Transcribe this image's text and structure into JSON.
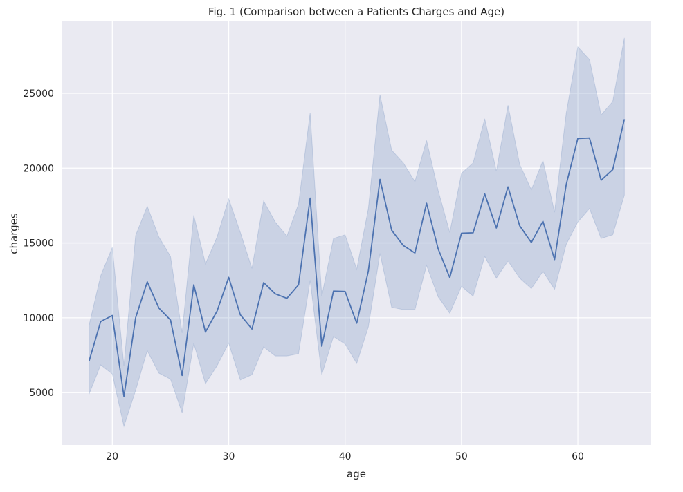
{
  "chart_data": {
    "type": "line",
    "title": "Fig. 1 (Comparison between a Patients Charges and Age)",
    "xlabel": "age",
    "ylabel": "charges",
    "xlim": [
      15.7,
      66.3
    ],
    "ylim": [
      1500,
      29800
    ],
    "x_ticks": [
      20,
      30,
      40,
      50,
      60
    ],
    "y_ticks": [
      5000,
      10000,
      15000,
      20000,
      25000
    ],
    "grid": true,
    "legend": "none",
    "colors": {
      "line": "#4c72b0",
      "band": "#4c72b0",
      "background": "#eaeaf2",
      "grid": "#ffffff"
    },
    "x": [
      18,
      19,
      20,
      21,
      22,
      23,
      24,
      25,
      26,
      27,
      28,
      29,
      30,
      31,
      32,
      33,
      34,
      35,
      36,
      37,
      38,
      39,
      40,
      41,
      42,
      43,
      44,
      45,
      46,
      47,
      48,
      49,
      50,
      51,
      52,
      53,
      54,
      55,
      56,
      57,
      58,
      59,
      60,
      61,
      62,
      63,
      64
    ],
    "mean": [
      7100,
      9750,
      10150,
      4750,
      10000,
      12400,
      10650,
      9850,
      6150,
      12200,
      9050,
      10450,
      12700,
      10200,
      9250,
      12350,
      11600,
      11300,
      12200,
      18000,
      8100,
      11780,
      11760,
      9640,
      13130,
      19250,
      15850,
      14830,
      14330,
      17650,
      14600,
      12680,
      15650,
      15680,
      18270,
      16000,
      18750,
      16150,
      15030,
      16450,
      13890,
      18900,
      21980,
      22010,
      19190,
      19900,
      23270
    ],
    "upper": [
      9500,
      12800,
      14700,
      6800,
      15500,
      17450,
      15400,
      14100,
      9000,
      16850,
      13600,
      15400,
      17950,
      15700,
      13300,
      17800,
      16400,
      15450,
      17600,
      23700,
      11450,
      15300,
      15550,
      13250,
      17300,
      24900,
      21200,
      20350,
      19100,
      21850,
      18500,
      15700,
      19650,
      20350,
      23300,
      19800,
      24200,
      20250,
      18550,
      20500,
      17050,
      23650,
      28100,
      27250,
      23550,
      24450,
      28700
    ],
    "lower": [
      4900,
      6850,
      6250,
      2750,
      5150,
      7800,
      6300,
      5900,
      3650,
      8300,
      5600,
      6800,
      8300,
      5850,
      6200,
      8050,
      7450,
      7450,
      7600,
      12500,
      6200,
      8750,
      8250,
      6950,
      9400,
      14300,
      10700,
      10550,
      10550,
      13500,
      11400,
      10300,
      12100,
      11450,
      14100,
      12650,
      13800,
      12650,
      11950,
      13100,
      11900,
      14900,
      16400,
      17300,
      15300,
      15550,
      18200
    ]
  }
}
